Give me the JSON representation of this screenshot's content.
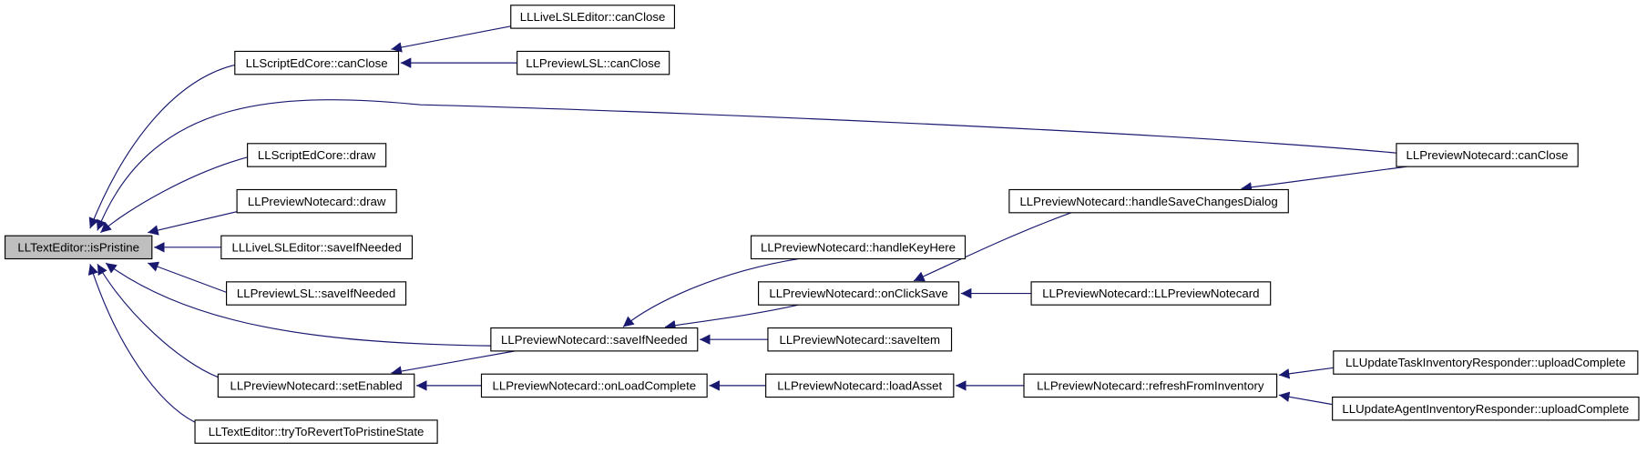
{
  "nodes": [
    "LLTextEditor::isPristine",
    "LLScriptEdCore::canClose",
    "LLLiveLSLEditor::canClose",
    "LLPreviewLSL::canClose",
    "LLPreviewNotecard::canClose",
    "LLScriptEdCore::draw",
    "LLPreviewNotecard::draw",
    "LLLiveLSLEditor::saveIfNeeded",
    "LLPreviewLSL::saveIfNeeded",
    "LLPreviewNotecard::setEnabled",
    "LLTextEditor::tryToRevertToPristineState",
    "LLPreviewNotecard::saveIfNeeded",
    "LLPreviewNotecard::handleKeyHere",
    "LLPreviewNotecard::onClickSave",
    "LLPreviewNotecard::saveItem",
    "LLPreviewNotecard::onLoadComplete",
    "LLPreviewNotecard::loadAsset",
    "LLPreviewNotecard::handleSaveChangesDialog",
    "LLPreviewNotecard::LLPreviewNotecard",
    "LLPreviewNotecard::refreshFromInventory",
    "LLUpdateTaskInventoryResponder::uploadComplete",
    "LLUpdateAgentInventoryResponder::uploadComplete"
  ]
}
